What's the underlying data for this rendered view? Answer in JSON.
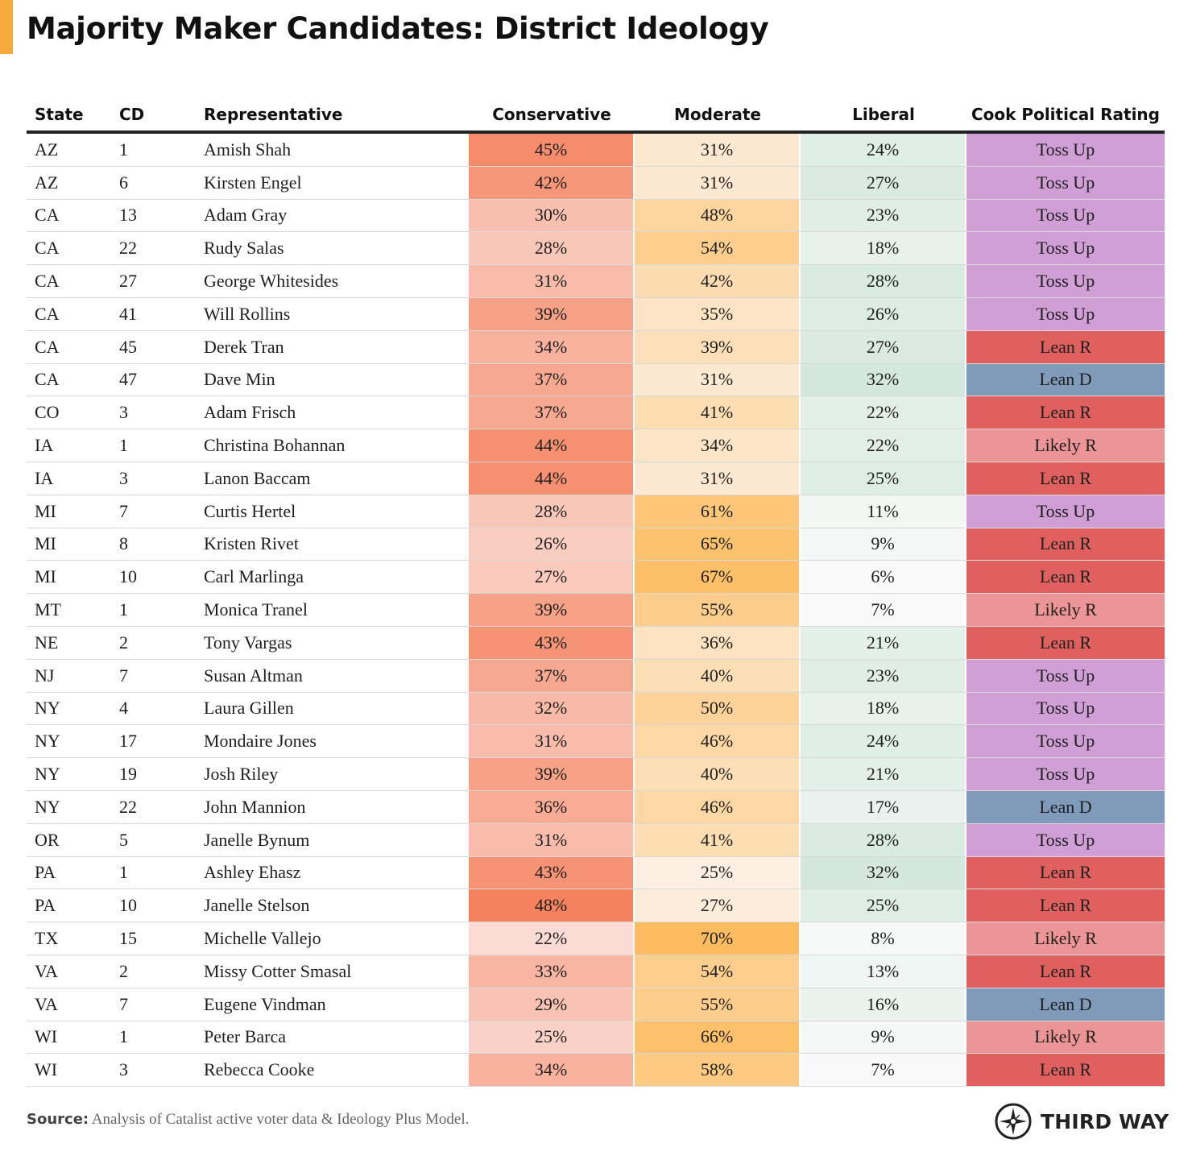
{
  "title": "Majority Maker Candidates: District Ideology",
  "source_label": "Source:",
  "source_text": "Analysis of Catalist active voter data & Ideology Plus Model.",
  "brand": "THIRD WAY",
  "colors": {
    "accent": "#f7a93b",
    "toss_up": "#cf9fd6",
    "lean_r": "#e05f5f",
    "likely_r": "#ec9596",
    "lean_d": "#7f9bb9"
  },
  "chart_data": {
    "type": "table",
    "columns": [
      "State",
      "CD",
      "Representative",
      "Conservative",
      "Moderate",
      "Liberal",
      "Cook Political Rating"
    ],
    "rows": [
      {
        "state": "AZ",
        "cd": "1",
        "rep": "Amish Shah",
        "con": "45%",
        "mod": "31%",
        "lib": "24%",
        "rating": "Toss Up"
      },
      {
        "state": "AZ",
        "cd": "6",
        "rep": "Kirsten Engel",
        "con": "42%",
        "mod": "31%",
        "lib": "27%",
        "rating": "Toss Up"
      },
      {
        "state": "CA",
        "cd": "13",
        "rep": "Adam Gray",
        "con": "30%",
        "mod": "48%",
        "lib": "23%",
        "rating": "Toss Up"
      },
      {
        "state": "CA",
        "cd": "22",
        "rep": "Rudy Salas",
        "con": "28%",
        "mod": "54%",
        "lib": "18%",
        "rating": "Toss Up"
      },
      {
        "state": "CA",
        "cd": "27",
        "rep": "George Whitesides",
        "con": "31%",
        "mod": "42%",
        "lib": "28%",
        "rating": "Toss Up"
      },
      {
        "state": "CA",
        "cd": "41",
        "rep": "Will Rollins",
        "con": "39%",
        "mod": "35%",
        "lib": "26%",
        "rating": "Toss Up"
      },
      {
        "state": "CA",
        "cd": "45",
        "rep": "Derek Tran",
        "con": "34%",
        "mod": "39%",
        "lib": "27%",
        "rating": "Lean R"
      },
      {
        "state": "CA",
        "cd": "47",
        "rep": "Dave Min",
        "con": "37%",
        "mod": "31%",
        "lib": "32%",
        "rating": "Lean D"
      },
      {
        "state": "CO",
        "cd": "3",
        "rep": "Adam Frisch",
        "con": "37%",
        "mod": "41%",
        "lib": "22%",
        "rating": "Lean R"
      },
      {
        "state": "IA",
        "cd": "1",
        "rep": "Christina Bohannan",
        "con": "44%",
        "mod": "34%",
        "lib": "22%",
        "rating": "Likely R"
      },
      {
        "state": "IA",
        "cd": "3",
        "rep": "Lanon Baccam",
        "con": "44%",
        "mod": "31%",
        "lib": "25%",
        "rating": "Lean R"
      },
      {
        "state": "MI",
        "cd": "7",
        "rep": "Curtis Hertel",
        "con": "28%",
        "mod": "61%",
        "lib": "11%",
        "rating": "Toss Up"
      },
      {
        "state": "MI",
        "cd": "8",
        "rep": "Kristen Rivet",
        "con": "26%",
        "mod": "65%",
        "lib": "9%",
        "rating": "Lean R"
      },
      {
        "state": "MI",
        "cd": "10",
        "rep": "Carl Marlinga",
        "con": "27%",
        "mod": "67%",
        "lib": "6%",
        "rating": "Lean R"
      },
      {
        "state": "MT",
        "cd": "1",
        "rep": "Monica Tranel",
        "con": "39%",
        "mod": "55%",
        "lib": "7%",
        "rating": "Likely R"
      },
      {
        "state": "NE",
        "cd": "2",
        "rep": "Tony Vargas",
        "con": "43%",
        "mod": "36%",
        "lib": "21%",
        "rating": "Lean R"
      },
      {
        "state": "NJ",
        "cd": "7",
        "rep": "Susan Altman",
        "con": "37%",
        "mod": "40%",
        "lib": "23%",
        "rating": "Toss Up"
      },
      {
        "state": "NY",
        "cd": "4",
        "rep": "Laura Gillen",
        "con": "32%",
        "mod": "50%",
        "lib": "18%",
        "rating": "Toss Up"
      },
      {
        "state": "NY",
        "cd": "17",
        "rep": "Mondaire Jones",
        "con": "31%",
        "mod": "46%",
        "lib": "24%",
        "rating": "Toss Up"
      },
      {
        "state": "NY",
        "cd": "19",
        "rep": "Josh Riley",
        "con": "39%",
        "mod": "40%",
        "lib": "21%",
        "rating": "Toss Up"
      },
      {
        "state": "NY",
        "cd": "22",
        "rep": "John Mannion",
        "con": "36%",
        "mod": "46%",
        "lib": "17%",
        "rating": "Lean D"
      },
      {
        "state": "OR",
        "cd": "5",
        "rep": "Janelle Bynum",
        "con": "31%",
        "mod": "41%",
        "lib": "28%",
        "rating": "Toss Up"
      },
      {
        "state": "PA",
        "cd": "1",
        "rep": "Ashley Ehasz",
        "con": "43%",
        "mod": "25%",
        "lib": "32%",
        "rating": "Lean R"
      },
      {
        "state": "PA",
        "cd": "10",
        "rep": "Janelle Stelson",
        "con": "48%",
        "mod": "27%",
        "lib": "25%",
        "rating": "Lean R"
      },
      {
        "state": "TX",
        "cd": "15",
        "rep": "Michelle Vallejo",
        "con": "22%",
        "mod": "70%",
        "lib": "8%",
        "rating": "Likely R"
      },
      {
        "state": "VA",
        "cd": "2",
        "rep": "Missy Cotter Smasal",
        "con": "33%",
        "mod": "54%",
        "lib": "13%",
        "rating": "Lean R"
      },
      {
        "state": "VA",
        "cd": "7",
        "rep": "Eugene Vindman",
        "con": "29%",
        "mod": "55%",
        "lib": "16%",
        "rating": "Lean D"
      },
      {
        "state": "WI",
        "cd": "1",
        "rep": "Peter Barca",
        "con": "25%",
        "mod": "66%",
        "lib": "9%",
        "rating": "Likely R"
      },
      {
        "state": "WI",
        "cd": "3",
        "rep": "Rebecca Cooke",
        "con": "34%",
        "mod": "58%",
        "lib": "7%",
        "rating": "Lean R"
      }
    ]
  }
}
